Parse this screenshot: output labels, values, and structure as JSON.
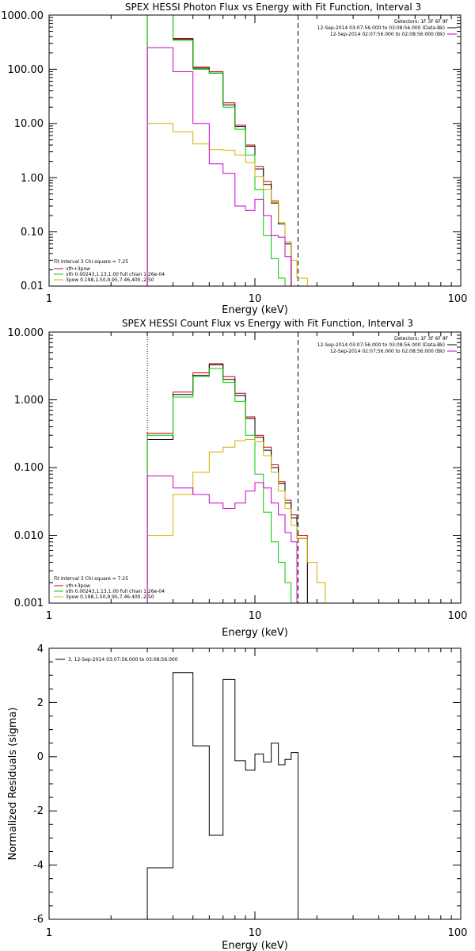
{
  "chart_data": [
    {
      "type": "line",
      "step": true,
      "title": "SPEX HESSI Photon Flux vs Energy with Fit Function, Interval 3",
      "xlabel": "Energy (keV)",
      "ylabel": "",
      "xscale": "log",
      "yscale": "log",
      "xlim": [
        1,
        100
      ],
      "ylim": [
        0.01,
        1000
      ],
      "xticks": [
        {
          "v": 1,
          "label": "1"
        },
        {
          "v": 10,
          "label": "10"
        },
        {
          "v": 100,
          "label": "100"
        }
      ],
      "yticks": [
        {
          "v": 0.01,
          "label": "0.01"
        },
        {
          "v": 0.1,
          "label": "0.10"
        },
        {
          "v": 1,
          "label": "1.00"
        },
        {
          "v": 10,
          "label": "10.00"
        },
        {
          "v": 100,
          "label": "100.00"
        },
        {
          "v": 1000,
          "label": "1000.00"
        }
      ],
      "edges": [
        3,
        4,
        5,
        6,
        7,
        8,
        9,
        10,
        11,
        12,
        13,
        14,
        15,
        16,
        18,
        20
      ],
      "vlines": [
        {
          "x": 3,
          "style": "dotted",
          "color": "#000000"
        },
        {
          "x": 16.2,
          "style": "dashed",
          "color": "#000000"
        }
      ],
      "series": [
        {
          "name": "vth+3pow",
          "color": "#d00000",
          "values": [
            1000,
            370,
            110,
            90,
            24,
            9.3,
            4.0,
            1.6,
            0.85,
            0.37,
            0.15,
            0.065
          ]
        },
        {
          "name": "",
          "color": "#000000",
          "values": [
            1000,
            360,
            105,
            85,
            22,
            8.8,
            3.8,
            1.45,
            0.75,
            0.34,
            0.14,
            0.06
          ]
        },
        {
          "name": "vth 0.00243,1.13,1.00  full chian 1.26e-04",
          "color": "#00cc00",
          "values": [
            1000,
            340,
            100,
            85,
            20,
            7.8,
            2.6,
            0.6,
            0.085,
            0.032,
            0.014,
            0.005
          ]
        },
        {
          "name": "3pow 0.198,1.50,9.95,7.46,400.,2.50",
          "color": "#d4b000",
          "values": [
            10,
            7,
            4.2,
            3.3,
            3.2,
            2.6,
            1.9,
            1.05,
            0.6,
            0.35,
            0.15,
            0.065,
            0.03,
            0.014,
            0.008
          ]
        },
        {
          "name": "",
          "color": "#cc00cc",
          "values": [
            250,
            90,
            10,
            1.8,
            1.2,
            0.3,
            0.25,
            0.4,
            0.2,
            0.085,
            0.08,
            0.035,
            0.008
          ]
        }
      ],
      "legend_left": {
        "lines": [
          "Fit Interval 3   Chi-square = 7.25"
        ],
        "entries": [
          {
            "label": "vth+3pow",
            "color": "#d00000"
          },
          {
            "label": "vth 0.00243,1.13,1.00  full chian 1.26e-04",
            "color": "#00cc00"
          },
          {
            "label": "3pow 0.198,1.50,9.95,7.46,400.,2.50",
            "color": "#d4b000"
          }
        ]
      },
      "legend_right": {
        "lines": [
          "Detectors: 1F 3F 6F 9F"
        ],
        "entries": [
          {
            "label": "12-Sep-2014 03:07:56.000 to 03:08:56.000 (Data-Bk)",
            "color": "#000000"
          },
          {
            "label": "12-Sep-2014 02:07:56.000 to 02:08:56.000 (Bk)",
            "color": "#cc00cc"
          }
        ]
      }
    },
    {
      "type": "line",
      "step": true,
      "title": "SPEX HESSI Count Flux vs Energy with Fit Function, Interval 3",
      "xlabel": "Energy (keV)",
      "ylabel": "",
      "xscale": "log",
      "yscale": "log",
      "xlim": [
        1,
        100
      ],
      "ylim": [
        0.001,
        10
      ],
      "xticks": [
        {
          "v": 1,
          "label": "1"
        },
        {
          "v": 10,
          "label": "10"
        },
        {
          "v": 100,
          "label": "100"
        }
      ],
      "yticks": [
        {
          "v": 0.001,
          "label": "0.001"
        },
        {
          "v": 0.01,
          "label": "0.010"
        },
        {
          "v": 0.1,
          "label": "0.100"
        },
        {
          "v": 1,
          "label": "1.000"
        },
        {
          "v": 10,
          "label": "10.000"
        }
      ],
      "edges": [
        3,
        4,
        5,
        6,
        7,
        8,
        9,
        10,
        11,
        12,
        13,
        14,
        15,
        16,
        18,
        20,
        22
      ],
      "vlines": [
        {
          "x": 3,
          "style": "dotted",
          "color": "#000000"
        },
        {
          "x": 16.2,
          "style": "dashed",
          "color": "#000000"
        }
      ],
      "series": [
        {
          "name": "vth+3pow",
          "color": "#d00000",
          "values": [
            0.32,
            1.3,
            2.5,
            3.4,
            2.2,
            1.25,
            0.56,
            0.3,
            0.2,
            0.11,
            0.062,
            0.033,
            0.02,
            0.01
          ]
        },
        {
          "name": "",
          "color": "#000000",
          "values": [
            0.26,
            1.2,
            2.3,
            3.3,
            2.0,
            1.15,
            0.53,
            0.28,
            0.18,
            0.1,
            0.058,
            0.03,
            0.018,
            0.009
          ]
        },
        {
          "name": "vth 0.00243,1.13,1.00  full chian 1.26e-04",
          "color": "#00cc00",
          "values": [
            0.3,
            1.1,
            2.2,
            2.9,
            1.8,
            0.95,
            0.3,
            0.08,
            0.022,
            0.008,
            0.004,
            0.002,
            0.001
          ]
        },
        {
          "name": "3pow 0.198,1.50,9.95,7.46,400.,2.50",
          "color": "#d4b000",
          "values": [
            0.01,
            0.04,
            0.085,
            0.17,
            0.2,
            0.25,
            0.26,
            0.24,
            0.15,
            0.085,
            0.045,
            0.025,
            0.014,
            0.009,
            0.004,
            0.002,
            0.001
          ]
        },
        {
          "name": "",
          "color": "#cc00cc",
          "values": [
            0.075,
            0.05,
            0.04,
            0.03,
            0.025,
            0.03,
            0.045,
            0.06,
            0.05,
            0.03,
            0.02,
            0.011,
            0.008
          ]
        }
      ],
      "legend_left": {
        "lines": [
          "Fit Interval 3   Chi-square = 7.25"
        ],
        "entries": [
          {
            "label": "vth+3pow",
            "color": "#d00000"
          },
          {
            "label": "vth 0.00243,1.13,1.00  full chian 1.26e-04",
            "color": "#00cc00"
          },
          {
            "label": "3pow 0.198,1.50,9.95,7.46,400.,2.50",
            "color": "#d4b000"
          }
        ]
      },
      "legend_right": {
        "lines": [
          "Detectors: 1F 3F 6F 9F"
        ],
        "entries": [
          {
            "label": "12-Sep-2014 03:07:56.000 to 03:08:56.000 (Data-Bk)",
            "color": "#000000"
          },
          {
            "label": "12-Sep-2014 02:07:56.000 to 02:08:56.000 (Bk)",
            "color": "#cc00cc"
          }
        ]
      }
    },
    {
      "type": "line",
      "step": true,
      "title": "",
      "xlabel": "Energy (keV)",
      "ylabel": "Normalized Residuals (sigma)",
      "xscale": "log",
      "yscale": "linear",
      "xlim": [
        1,
        100
      ],
      "ylim": [
        -6,
        4
      ],
      "xticks": [
        {
          "v": 1,
          "label": "1"
        },
        {
          "v": 10,
          "label": "10"
        },
        {
          "v": 100,
          "label": "100"
        }
      ],
      "yticks": [
        {
          "v": -6,
          "label": "-6"
        },
        {
          "v": -4,
          "label": "-4"
        },
        {
          "v": -2,
          "label": "-2"
        },
        {
          "v": 0,
          "label": "0"
        },
        {
          "v": 2,
          "label": "2"
        },
        {
          "v": 4,
          "label": "4"
        }
      ],
      "edges": [
        3,
        4,
        5,
        6,
        7,
        8,
        9,
        10,
        11,
        12,
        13,
        14,
        15,
        16.2
      ],
      "vlines": [],
      "baseline": -6,
      "series": [
        {
          "name": "3, 12-Sep-2014 03:07:56.000 to 03:08:56.000",
          "color": "#000000",
          "values": [
            -4.1,
            3.1,
            0.4,
            -2.9,
            2.85,
            -0.15,
            -0.5,
            0.1,
            -0.2,
            0.5,
            -0.3,
            -0.1,
            0.15
          ]
        }
      ],
      "legend_left": {
        "lines": [],
        "entries": [
          {
            "label": "3, 12-Sep-2014 03:07:56.000 to 03:08:56.000",
            "color": "#000000"
          }
        ]
      },
      "legend_right": {
        "lines": [],
        "entries": []
      }
    }
  ]
}
